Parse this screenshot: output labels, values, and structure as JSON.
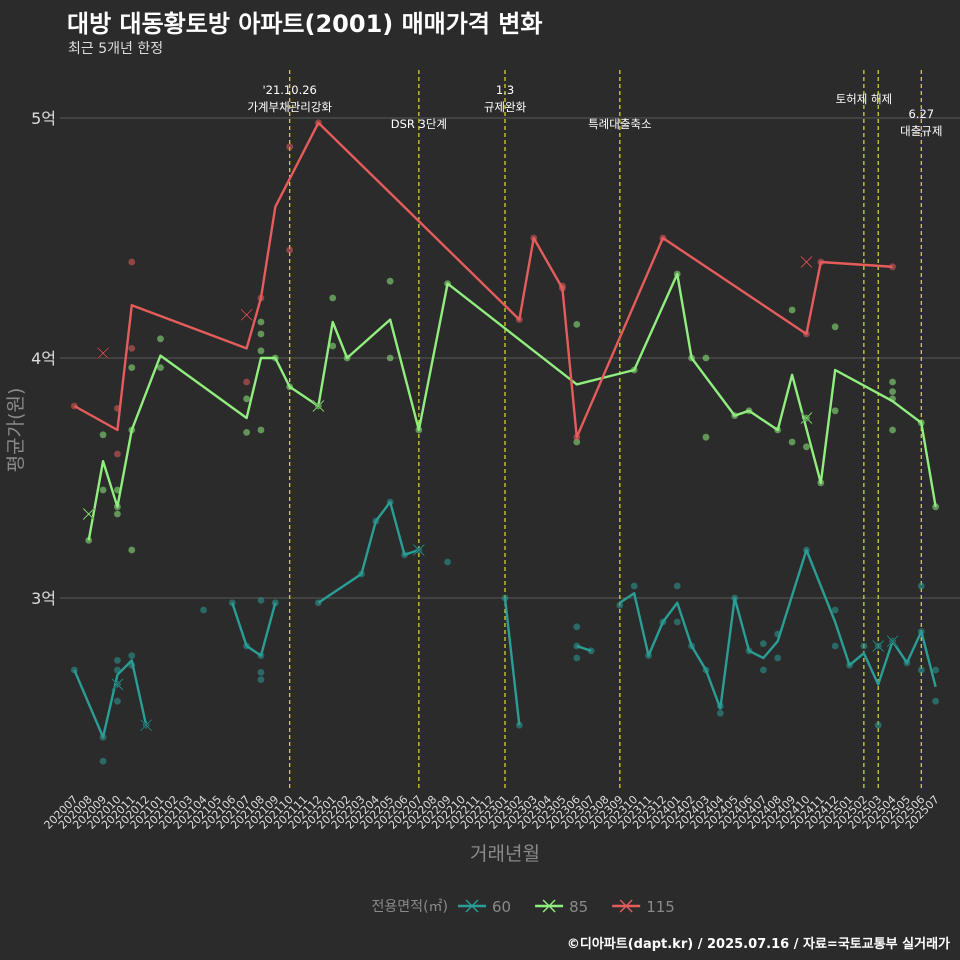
{
  "title": "대방 대동황토방 아파트(2001) 매매가격 변화",
  "subtitle": "최근 5개년 한정",
  "caption": "©디아파트(dapt.kr) / 2025.07.16 / 자료=국토교통부 실거래가",
  "colors": {
    "background": "#2b2b2b",
    "grid": "#5a5a5a",
    "event_line": "#dede3a",
    "axis_text": "#dddddd",
    "title_muted": "#8a8a8a"
  },
  "chart_data": {
    "type": "line",
    "xlabel": "거래년월",
    "ylabel": "평균가(원)",
    "legend_title": "전용면적(㎡)",
    "legend_position": "bottom",
    "grid": true,
    "ylim": [
      2.2,
      5.2
    ],
    "ytick_values": [
      3,
      4,
      5
    ],
    "ytick_labels": [
      "3억",
      "4억",
      "5억"
    ],
    "categories": [
      "202007",
      "202008",
      "202009",
      "202010",
      "202011",
      "202012",
      "202101",
      "202102",
      "202103",
      "202104",
      "202105",
      "202106",
      "202107",
      "202108",
      "202109",
      "202110",
      "202111",
      "202112",
      "202201",
      "202202",
      "202203",
      "202204",
      "202205",
      "202206",
      "202207",
      "202208",
      "202209",
      "202210",
      "202211",
      "202212",
      "202301",
      "202302",
      "202303",
      "202304",
      "202305",
      "202306",
      "202307",
      "202308",
      "202309",
      "202310",
      "202311",
      "202312",
      "202401",
      "202402",
      "202403",
      "202404",
      "202405",
      "202406",
      "202407",
      "202408",
      "202409",
      "202410",
      "202411",
      "202412",
      "202501",
      "202502",
      "202503",
      "202504",
      "202505",
      "202506",
      "202507"
    ],
    "series": [
      {
        "name": "60",
        "color": "#2a9d95",
        "line_segments": [
          [
            [
              "202007",
              2.7
            ],
            [
              "202009",
              2.42
            ],
            [
              "202010",
              2.68
            ],
            [
              "202011",
              2.74
            ],
            [
              "202012",
              2.47
            ]
          ],
          [
            [
              "202106",
              2.98
            ],
            [
              "202107",
              2.8
            ],
            [
              "202108",
              2.76
            ],
            [
              "202109",
              2.98
            ]
          ],
          [
            [
              "202112",
              2.98
            ],
            [
              "202203",
              3.1
            ],
            [
              "202204",
              3.32
            ],
            [
              "202205",
              3.4
            ],
            [
              "202206",
              3.18
            ],
            [
              "202207",
              3.2
            ]
          ],
          [
            [
              "202301",
              3.0
            ],
            [
              "202302",
              2.47
            ]
          ],
          [
            [
              "202306",
              2.8
            ],
            [
              "202307",
              2.78
            ]
          ],
          [
            [
              "202309",
              2.98
            ],
            [
              "202310",
              3.02
            ],
            [
              "202311",
              2.76
            ],
            [
              "202312",
              2.9
            ],
            [
              "202401",
              2.98
            ],
            [
              "202402",
              2.8
            ],
            [
              "202403",
              2.7
            ],
            [
              "202404",
              2.54
            ],
            [
              "202405",
              3.0
            ],
            [
              "202406",
              2.78
            ],
            [
              "202407",
              2.75
            ],
            [
              "202408",
              2.82
            ],
            [
              "202410",
              3.2
            ],
            [
              "202412",
              2.9
            ],
            [
              "202501",
              2.72
            ],
            [
              "202502",
              2.77
            ],
            [
              "202503",
              2.64
            ],
            [
              "202504",
              2.82
            ],
            [
              "202505",
              2.73
            ],
            [
              "202506",
              2.86
            ],
            [
              "202507",
              2.63
            ]
          ]
        ],
        "points": [
          [
            "202007",
            2.7
          ],
          [
            "202009",
            2.32
          ],
          [
            "202009",
            2.42
          ],
          [
            "202010",
            2.74
          ],
          [
            "202010",
            2.7
          ],
          [
            "202010",
            2.64
          ],
          [
            "202010",
            2.57
          ],
          [
            "202011",
            2.76
          ],
          [
            "202011",
            2.72
          ],
          [
            "202012",
            2.47
          ],
          [
            "202104",
            2.95
          ],
          [
            "202106",
            2.98
          ],
          [
            "202107",
            2.8
          ],
          [
            "202108",
            2.99
          ],
          [
            "202108",
            2.69
          ],
          [
            "202108",
            2.66
          ],
          [
            "202108",
            2.76
          ],
          [
            "202109",
            2.98
          ],
          [
            "202112",
            2.98
          ],
          [
            "202203",
            3.1
          ],
          [
            "202204",
            3.32
          ],
          [
            "202205",
            3.4
          ],
          [
            "202206",
            3.18
          ],
          [
            "202207",
            3.2
          ],
          [
            "202209",
            3.15
          ],
          [
            "202301",
            3.0
          ],
          [
            "202302",
            2.47
          ],
          [
            "202306",
            2.88
          ],
          [
            "202306",
            2.8
          ],
          [
            "202306",
            2.75
          ],
          [
            "202307",
            2.78
          ],
          [
            "202309",
            2.97
          ],
          [
            "202310",
            3.05
          ],
          [
            "202311",
            2.76
          ],
          [
            "202312",
            2.9
          ],
          [
            "202401",
            3.05
          ],
          [
            "202401",
            2.9
          ],
          [
            "202402",
            2.8
          ],
          [
            "202403",
            2.7
          ],
          [
            "202404",
            2.52
          ],
          [
            "202404",
            2.55
          ],
          [
            "202405",
            3.0
          ],
          [
            "202406",
            2.78
          ],
          [
            "202407",
            2.81
          ],
          [
            "202407",
            2.7
          ],
          [
            "202408",
            2.85
          ],
          [
            "202408",
            2.75
          ],
          [
            "202410",
            3.2
          ],
          [
            "202412",
            2.95
          ],
          [
            "202412",
            2.8
          ],
          [
            "202501",
            2.72
          ],
          [
            "202502",
            2.8
          ],
          [
            "202503",
            2.8
          ],
          [
            "202503",
            2.47
          ],
          [
            "202504",
            2.82
          ],
          [
            "202505",
            2.73
          ],
          [
            "202506",
            3.05
          ],
          [
            "202506",
            2.86
          ],
          [
            "202506",
            2.7
          ],
          [
            "202507",
            2.7
          ],
          [
            "202507",
            2.57
          ]
        ],
        "marker_points": [
          [
            "202010",
            2.64
          ],
          [
            "202012",
            2.47
          ],
          [
            "202207",
            3.2
          ],
          [
            "202503",
            2.8
          ],
          [
            "202504",
            2.82
          ]
        ]
      },
      {
        "name": "85",
        "color": "#90ee7e",
        "line_segments": [
          [
            [
              "202008",
              3.24
            ],
            [
              "202009",
              3.57
            ],
            [
              "202010",
              3.38
            ],
            [
              "202011",
              3.7
            ],
            [
              "202101",
              4.01
            ],
            [
              "202107",
              3.75
            ],
            [
              "202108",
              4.0
            ],
            [
              "202109",
              4.0
            ],
            [
              "202110",
              3.88
            ],
            [
              "202112",
              3.8
            ],
            [
              "202201",
              4.15
            ],
            [
              "202202",
              4.0
            ],
            [
              "202205",
              4.16
            ],
            [
              "202207",
              3.7
            ],
            [
              "202209",
              4.31
            ],
            [
              "202306",
              3.89
            ],
            [
              "202310",
              3.95
            ],
            [
              "202401",
              4.35
            ],
            [
              "202402",
              4.0
            ],
            [
              "202404",
              3.84
            ],
            [
              "202405",
              3.76
            ],
            [
              "202406",
              3.78
            ],
            [
              "202408",
              3.7
            ],
            [
              "202409",
              3.93
            ],
            [
              "202411",
              3.48
            ],
            [
              "202412",
              3.95
            ],
            [
              "202504",
              3.82
            ],
            [
              "202506",
              3.73
            ],
            [
              "202507",
              3.38
            ]
          ]
        ],
        "points": [
          [
            "202008",
            3.24
          ],
          [
            "202009",
            3.68
          ],
          [
            "202009",
            3.45
          ],
          [
            "202010",
            3.45
          ],
          [
            "202010",
            3.38
          ],
          [
            "202010",
            3.35
          ],
          [
            "202011",
            3.96
          ],
          [
            "202011",
            3.7
          ],
          [
            "202011",
            3.2
          ],
          [
            "202101",
            4.08
          ],
          [
            "202101",
            3.96
          ],
          [
            "202107",
            3.83
          ],
          [
            "202107",
            3.69
          ],
          [
            "202108",
            4.15
          ],
          [
            "202108",
            4.1
          ],
          [
            "202108",
            4.03
          ],
          [
            "202108",
            3.7
          ],
          [
            "202109",
            4.0
          ],
          [
            "202110",
            3.88
          ],
          [
            "202112",
            3.8
          ],
          [
            "202201",
            4.25
          ],
          [
            "202201",
            4.05
          ],
          [
            "202202",
            4.0
          ],
          [
            "202205",
            4.32
          ],
          [
            "202205",
            4.0
          ],
          [
            "202207",
            3.7
          ],
          [
            "202209",
            4.31
          ],
          [
            "202306",
            4.14
          ],
          [
            "202306",
            3.65
          ],
          [
            "202310",
            3.95
          ],
          [
            "202401",
            4.35
          ],
          [
            "202402",
            4.0
          ],
          [
            "202403",
            4.0
          ],
          [
            "202403",
            3.67
          ],
          [
            "202405",
            3.76
          ],
          [
            "202406",
            3.78
          ],
          [
            "202408",
            3.7
          ],
          [
            "202409",
            4.2
          ],
          [
            "202409",
            3.65
          ],
          [
            "202410",
            3.75
          ],
          [
            "202410",
            3.63
          ],
          [
            "202411",
            3.48
          ],
          [
            "202412",
            4.13
          ],
          [
            "202412",
            3.78
          ],
          [
            "202504",
            3.9
          ],
          [
            "202504",
            3.86
          ],
          [
            "202504",
            3.83
          ],
          [
            "202504",
            3.7
          ],
          [
            "202506",
            3.73
          ],
          [
            "202507",
            3.38
          ]
        ],
        "marker_points": [
          [
            "202008",
            3.35
          ],
          [
            "202112",
            3.8
          ],
          [
            "202410",
            3.75
          ]
        ]
      },
      {
        "name": "115",
        "color": "#e55c5c",
        "line_segments": [
          [
            [
              "202007",
              3.8
            ],
            [
              "202010",
              3.7
            ],
            [
              "202011",
              4.22
            ],
            [
              "202107",
              4.04
            ],
            [
              "202108",
              4.25
            ],
            [
              "202109",
              4.63
            ],
            [
              "202112",
              4.98
            ],
            [
              "202302",
              4.16
            ],
            [
              "202303",
              4.5
            ],
            [
              "202305",
              4.29
            ],
            [
              "202306",
              3.67
            ],
            [
              "202312",
              4.5
            ],
            [
              "202410",
              4.1
            ],
            [
              "202411",
              4.4
            ],
            [
              "202504",
              4.38
            ]
          ]
        ],
        "points": [
          [
            "202007",
            3.8
          ],
          [
            "202010",
            3.79
          ],
          [
            "202010",
            3.6
          ],
          [
            "202011",
            4.4
          ],
          [
            "202011",
            4.04
          ],
          [
            "202107",
            3.9
          ],
          [
            "202108",
            4.25
          ],
          [
            "202110",
            4.88
          ],
          [
            "202110",
            4.45
          ],
          [
            "202112",
            4.98
          ],
          [
            "202302",
            4.16
          ],
          [
            "202303",
            4.5
          ],
          [
            "202305",
            4.3
          ],
          [
            "202305",
            4.29
          ],
          [
            "202306",
            3.67
          ],
          [
            "202312",
            4.5
          ],
          [
            "202410",
            4.1
          ],
          [
            "202411",
            4.4
          ],
          [
            "202504",
            4.38
          ]
        ],
        "marker_points": [
          [
            "202009",
            4.02
          ],
          [
            "202107",
            4.18
          ],
          [
            "202410",
            4.4
          ]
        ]
      }
    ],
    "events": [
      {
        "x": "202110",
        "lines": [
          "'21.10.26",
          "가계부채관리강화"
        ],
        "level": "high"
      },
      {
        "x": "202207",
        "lines": [
          "DSR 3단계"
        ],
        "level": "low"
      },
      {
        "x": "202301",
        "lines": [
          "1.3",
          "규제완화"
        ],
        "level": "high"
      },
      {
        "x": "202309",
        "lines": [
          "특례대출축소"
        ],
        "level": "low"
      },
      {
        "x": "202502",
        "lines": [
          "토허제 해제"
        ],
        "level": "mid"
      },
      {
        "x": "202503",
        "lines": [],
        "level": "none"
      },
      {
        "x": "202506",
        "lines": [
          "6.27",
          "대출규제"
        ],
        "level": "low2"
      }
    ]
  }
}
